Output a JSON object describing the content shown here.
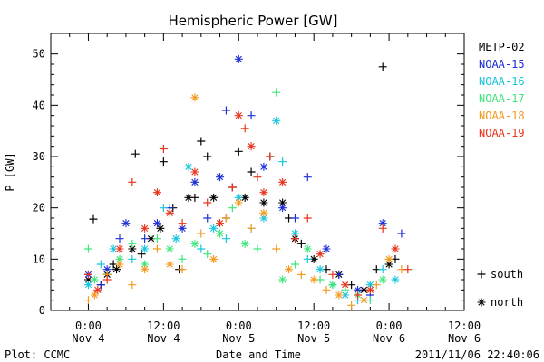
{
  "chart_data": {
    "type": "scatter",
    "title": "Hemispheric Power [GW]",
    "ylabel": "P [GW]",
    "xlabel": "Date and Time",
    "footer_left": "Plot: CCMC",
    "footer_right": "2011/11/06 22:40:06",
    "ylim": [
      0,
      54
    ],
    "xlim_hours": [
      -6,
      60
    ],
    "yticks": [
      0,
      10,
      20,
      30,
      40,
      50
    ],
    "xticks": [
      {
        "h": 0,
        "time": "0:00",
        "date": "Nov 4"
      },
      {
        "h": 12,
        "time": "12:00",
        "date": "Nov 4"
      },
      {
        "h": 24,
        "time": "0:00",
        "date": "Nov 5"
      },
      {
        "h": 36,
        "time": "12:00",
        "date": "Nov 5"
      },
      {
        "h": 48,
        "time": "0:00",
        "date": "Nov 6"
      },
      {
        "h": 60,
        "time": "12:00",
        "date": "Nov 6"
      }
    ],
    "legend_position": "right",
    "marker_legend": [
      {
        "symbol": "+",
        "label": "south"
      },
      {
        "symbol": "*",
        "label": "north"
      }
    ],
    "series": [
      {
        "name": "METP-02",
        "color": "#000000",
        "points": [
          [
            0,
            6,
            "*"
          ],
          [
            0.8,
            17.8,
            "+"
          ],
          [
            2,
            5,
            "+"
          ],
          [
            3,
            7,
            "*"
          ],
          [
            4,
            9,
            "+"
          ],
          [
            4.5,
            8,
            "*"
          ],
          [
            7.5,
            30.5,
            "+"
          ],
          [
            7,
            12,
            "*"
          ],
          [
            8.5,
            11,
            "+"
          ],
          [
            10,
            14,
            "*"
          ],
          [
            11.5,
            16,
            "*"
          ],
          [
            12,
            29,
            "+"
          ],
          [
            13.5,
            20,
            "+"
          ],
          [
            14.5,
            8,
            "+"
          ],
          [
            16,
            22,
            "*"
          ],
          [
            17,
            22,
            "+"
          ],
          [
            18,
            33,
            "+"
          ],
          [
            19,
            30,
            "+"
          ],
          [
            20,
            22,
            "*"
          ],
          [
            22,
            18,
            "+"
          ],
          [
            23,
            24,
            "+"
          ],
          [
            24,
            31,
            "+"
          ],
          [
            25,
            22,
            "*"
          ],
          [
            26,
            27,
            "+"
          ],
          [
            28,
            21,
            "*"
          ],
          [
            29,
            30,
            "+"
          ],
          [
            31,
            21,
            "*"
          ],
          [
            32,
            18,
            "+"
          ],
          [
            33,
            14,
            "*"
          ],
          [
            34,
            13,
            "+"
          ],
          [
            36,
            10,
            "*"
          ],
          [
            38,
            8,
            "+"
          ],
          [
            40,
            7,
            "*"
          ],
          [
            42,
            5,
            "+"
          ],
          [
            44,
            4,
            "*"
          ],
          [
            46,
            8,
            "+"
          ],
          [
            47,
            47.5,
            "+"
          ],
          [
            48,
            9,
            "*"
          ],
          [
            49,
            10,
            "+"
          ]
        ]
      },
      {
        "name": "NOAA-15",
        "color": "#1c2fd6",
        "points": [
          [
            0,
            7,
            "*"
          ],
          [
            2,
            5,
            "+"
          ],
          [
            3,
            8,
            "*"
          ],
          [
            5,
            14,
            "+"
          ],
          [
            6,
            17,
            "*"
          ],
          [
            9,
            14,
            "+"
          ],
          [
            11,
            17,
            "*"
          ],
          [
            13,
            20,
            "+"
          ],
          [
            15,
            16,
            "*"
          ],
          [
            17,
            25,
            "*"
          ],
          [
            19,
            18,
            "+"
          ],
          [
            21,
            26,
            "*"
          ],
          [
            22,
            39,
            "+"
          ],
          [
            24,
            49,
            "*"
          ],
          [
            26,
            38,
            "+"
          ],
          [
            28,
            28,
            "*"
          ],
          [
            31,
            20,
            "*"
          ],
          [
            33,
            18,
            "+"
          ],
          [
            35,
            26,
            "+"
          ],
          [
            38,
            12,
            "*"
          ],
          [
            40,
            7,
            "+"
          ],
          [
            43,
            4,
            "*"
          ],
          [
            45,
            3,
            "+"
          ],
          [
            47,
            17,
            "*"
          ],
          [
            50,
            15,
            "+"
          ]
        ]
      },
      {
        "name": "NOAA-16",
        "color": "#17c6dd",
        "points": [
          [
            0,
            5,
            "*"
          ],
          [
            2,
            9,
            "+"
          ],
          [
            4,
            12,
            "*"
          ],
          [
            7,
            10,
            "+"
          ],
          [
            9,
            12,
            "*"
          ],
          [
            12,
            20,
            "+"
          ],
          [
            14,
            14,
            "*"
          ],
          [
            16,
            28,
            "*"
          ],
          [
            18,
            12,
            "+"
          ],
          [
            20,
            16,
            "*"
          ],
          [
            22,
            14,
            "+"
          ],
          [
            24,
            22,
            "*"
          ],
          [
            26,
            16,
            "+"
          ],
          [
            28,
            18,
            "*"
          ],
          [
            30,
            37,
            "*"
          ],
          [
            31,
            29,
            "+"
          ],
          [
            33,
            15,
            "*"
          ],
          [
            35,
            10,
            "+"
          ],
          [
            37,
            8,
            "*"
          ],
          [
            39,
            5,
            "+"
          ],
          [
            41,
            3,
            "*"
          ],
          [
            43,
            2,
            "+"
          ],
          [
            45,
            5,
            "*"
          ],
          [
            47,
            8,
            "+"
          ],
          [
            49,
            6,
            "*"
          ]
        ]
      },
      {
        "name": "NOAA-17",
        "color": "#3ee67a",
        "points": [
          [
            0,
            12,
            "+"
          ],
          [
            1,
            6,
            "*"
          ],
          [
            3,
            7,
            "+"
          ],
          [
            5,
            10,
            "*"
          ],
          [
            7,
            13,
            "+"
          ],
          [
            9,
            9,
            "*"
          ],
          [
            11,
            14,
            "+"
          ],
          [
            13,
            12,
            "*"
          ],
          [
            15,
            10,
            "+"
          ],
          [
            17,
            13,
            "*"
          ],
          [
            19,
            11,
            "+"
          ],
          [
            21,
            15,
            "*"
          ],
          [
            23,
            20,
            "+"
          ],
          [
            25,
            13,
            "*"
          ],
          [
            27,
            12,
            "+"
          ],
          [
            30,
            42.5,
            "+"
          ],
          [
            31,
            6,
            "*"
          ],
          [
            33,
            9,
            "+"
          ],
          [
            35,
            12,
            "*"
          ],
          [
            37,
            6,
            "+"
          ],
          [
            39,
            5,
            "*"
          ],
          [
            41,
            4,
            "+"
          ],
          [
            43,
            3,
            "*"
          ],
          [
            45,
            2,
            "+"
          ],
          [
            47,
            6,
            "*"
          ]
        ]
      },
      {
        "name": "NOAA-18",
        "color": "#f5991f",
        "points": [
          [
            0,
            2,
            "+"
          ],
          [
            1,
            3,
            "*"
          ],
          [
            3,
            7,
            "+"
          ],
          [
            5,
            9,
            "*"
          ],
          [
            7,
            5,
            "+"
          ],
          [
            9,
            8,
            "*"
          ],
          [
            11,
            12,
            "+"
          ],
          [
            13,
            9,
            "*"
          ],
          [
            15,
            8,
            "+"
          ],
          [
            17,
            41.5,
            "*"
          ],
          [
            18,
            15,
            "+"
          ],
          [
            20,
            10,
            "*"
          ],
          [
            22,
            18,
            "+"
          ],
          [
            24,
            21,
            "*"
          ],
          [
            26,
            16,
            "+"
          ],
          [
            28,
            19,
            "*"
          ],
          [
            30,
            12,
            "+"
          ],
          [
            32,
            8,
            "*"
          ],
          [
            34,
            7,
            "+"
          ],
          [
            36,
            6,
            "*"
          ],
          [
            38,
            4,
            "+"
          ],
          [
            40,
            3,
            "*"
          ],
          [
            42,
            1,
            "+"
          ],
          [
            44,
            2,
            "*"
          ],
          [
            46,
            5,
            "+"
          ],
          [
            48,
            10,
            "*"
          ],
          [
            50,
            8,
            "+"
          ]
        ]
      },
      {
        "name": "NOAA-19",
        "color": "#e8341c",
        "points": [
          [
            0,
            7,
            "+"
          ],
          [
            1.5,
            4,
            "*"
          ],
          [
            3,
            6,
            "+"
          ],
          [
            5,
            12,
            "*"
          ],
          [
            7,
            25,
            "+"
          ],
          [
            9,
            16,
            "*"
          ],
          [
            11,
            23,
            "*"
          ],
          [
            12,
            31.5,
            "+"
          ],
          [
            13,
            19,
            "*"
          ],
          [
            15,
            17,
            "+"
          ],
          [
            17,
            27,
            "*"
          ],
          [
            19,
            21,
            "+"
          ],
          [
            21,
            17,
            "*"
          ],
          [
            23,
            24,
            "+"
          ],
          [
            24,
            38,
            "*"
          ],
          [
            25,
            35.5,
            "+"
          ],
          [
            26,
            32,
            "*"
          ],
          [
            27,
            26,
            "+"
          ],
          [
            28,
            23,
            "*"
          ],
          [
            29,
            30,
            "+"
          ],
          [
            31,
            25,
            "*"
          ],
          [
            33,
            14,
            "+"
          ],
          [
            35,
            18,
            "+"
          ],
          [
            37,
            11,
            "*"
          ],
          [
            39,
            7,
            "+"
          ],
          [
            41,
            5,
            "*"
          ],
          [
            43,
            3,
            "+"
          ],
          [
            45,
            4,
            "*"
          ],
          [
            47,
            16,
            "+"
          ],
          [
            49,
            12,
            "*"
          ],
          [
            51,
            8,
            "+"
          ]
        ]
      }
    ]
  }
}
